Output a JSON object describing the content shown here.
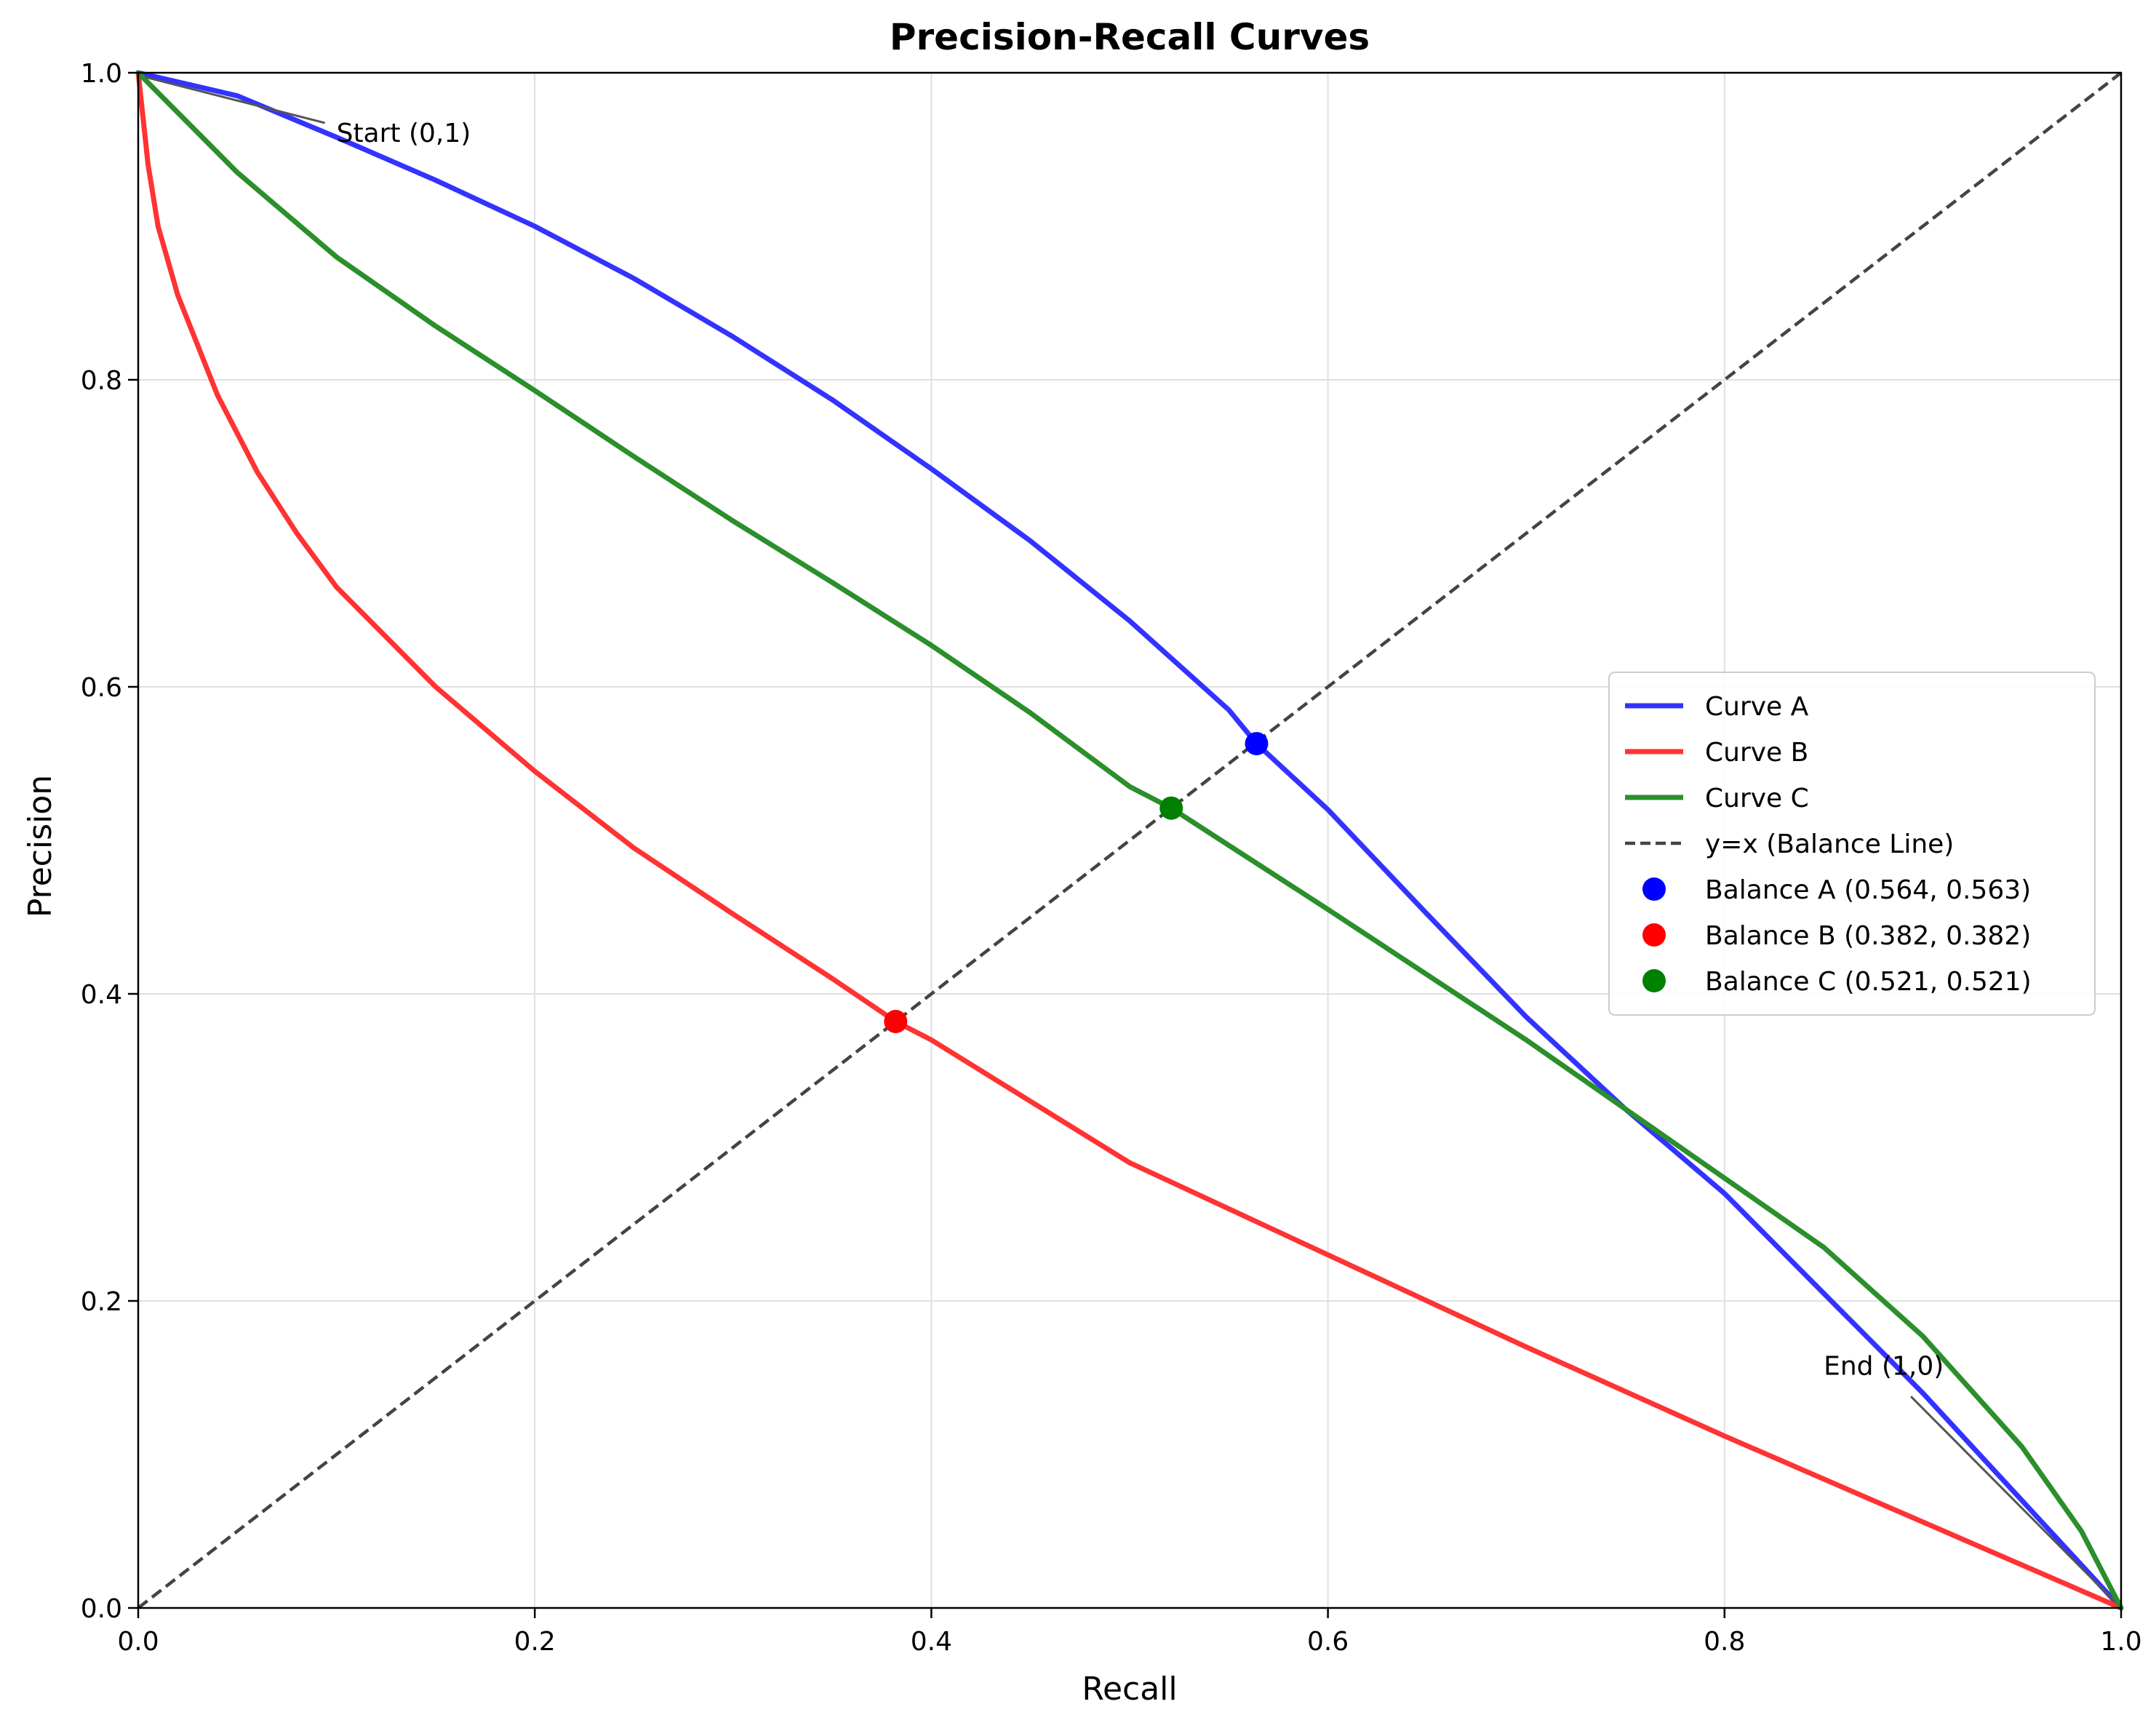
{
  "chart_data": {
    "type": "line",
    "title": "Precision-Recall Curves",
    "xlabel": "Recall",
    "ylabel": "Precision",
    "xlim": [
      0,
      1
    ],
    "ylim": [
      0,
      1
    ],
    "xticks": [
      "0.0",
      "0.2",
      "0.4",
      "0.6",
      "0.8",
      "1.0"
    ],
    "yticks": [
      "0.0",
      "0.2",
      "0.4",
      "0.6",
      "0.8",
      "1.0"
    ],
    "grid": true,
    "legend_position": "center-right",
    "series": [
      {
        "name": "Curve A",
        "color": "#3333ff",
        "x": [
          0,
          0.05,
          0.1,
          0.15,
          0.2,
          0.25,
          0.3,
          0.35,
          0.4,
          0.45,
          0.5,
          0.55,
          0.564,
          0.6,
          0.65,
          0.7,
          0.75,
          0.8,
          0.85,
          0.9,
          0.95,
          1.0
        ],
        "y": [
          1.0,
          0.985,
          0.958,
          0.93,
          0.9,
          0.866,
          0.828,
          0.787,
          0.742,
          0.695,
          0.643,
          0.585,
          0.563,
          0.52,
          0.452,
          0.385,
          0.325,
          0.27,
          0.205,
          0.14,
          0.07,
          0.0
        ]
      },
      {
        "name": "Curve B",
        "color": "#ff3333",
        "x": [
          0,
          0.005,
          0.01,
          0.02,
          0.04,
          0.06,
          0.08,
          0.1,
          0.15,
          0.2,
          0.25,
          0.3,
          0.35,
          0.382,
          0.4,
          0.5,
          0.6,
          0.7,
          0.8,
          0.9,
          1.0
        ],
        "y": [
          1.0,
          0.94,
          0.9,
          0.855,
          0.79,
          0.74,
          0.7,
          0.665,
          0.6,
          0.545,
          0.495,
          0.452,
          0.41,
          0.382,
          0.37,
          0.29,
          0.23,
          0.17,
          0.112,
          0.056,
          0.0
        ]
      },
      {
        "name": "Curve C",
        "color": "#2b8f2b",
        "x": [
          0,
          0.05,
          0.1,
          0.15,
          0.2,
          0.25,
          0.3,
          0.35,
          0.4,
          0.45,
          0.5,
          0.521,
          0.6,
          0.7,
          0.8,
          0.85,
          0.9,
          0.95,
          0.98,
          1.0
        ],
        "y": [
          1.0,
          0.935,
          0.88,
          0.835,
          0.793,
          0.75,
          0.708,
          0.668,
          0.627,
          0.583,
          0.535,
          0.521,
          0.455,
          0.37,
          0.28,
          0.235,
          0.177,
          0.105,
          0.05,
          0.0
        ]
      }
    ],
    "reference_line": {
      "name": "y=x (Balance Line)",
      "color": "#444444",
      "x": [
        0,
        1
      ],
      "y": [
        0,
        1
      ]
    },
    "points": [
      {
        "name": "Balance A (0.564, 0.563)",
        "color": "#0000ff",
        "x": 0.564,
        "y": 0.563
      },
      {
        "name": "Balance B (0.382, 0.382)",
        "color": "#ff0000",
        "x": 0.382,
        "y": 0.382
      },
      {
        "name": "Balance C (0.521, 0.521)",
        "color": "#008000",
        "x": 0.521,
        "y": 0.521
      }
    ],
    "annotations": [
      {
        "text": "Start (0,1)",
        "x": 0.1,
        "y": 0.955,
        "target_x": 0.0,
        "target_y": 1.0
      },
      {
        "text": "End (1,0)",
        "x": 0.85,
        "y": 0.152,
        "target_x": 1.0,
        "target_y": 0.0
      }
    ]
  }
}
